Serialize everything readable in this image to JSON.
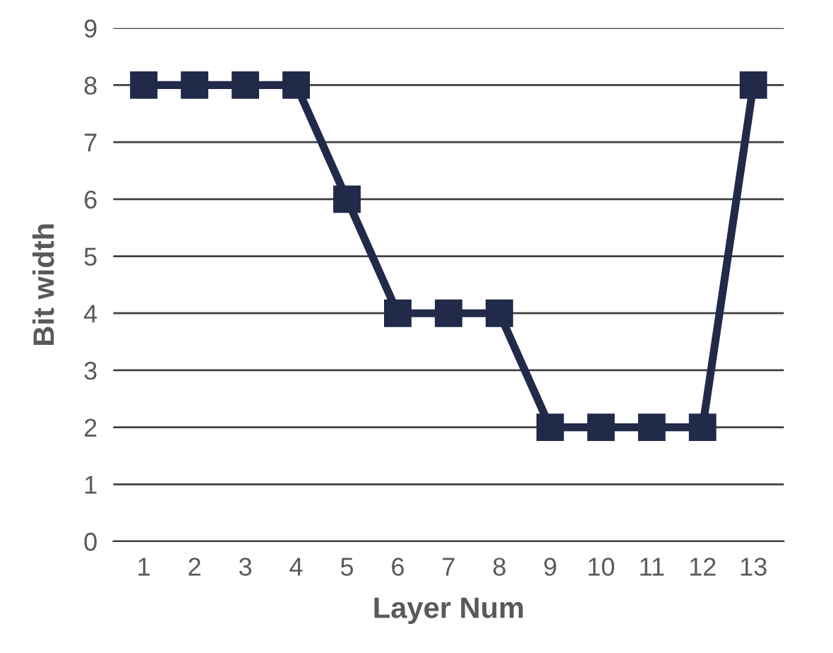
{
  "chart_data": {
    "type": "line",
    "xlabel": "Layer Num",
    "ylabel": "Bit width",
    "categories": [
      "1",
      "2",
      "3",
      "4",
      "5",
      "6",
      "7",
      "8",
      "9",
      "10",
      "11",
      "12",
      "13"
    ],
    "series": [
      {
        "color": "#222a4a",
        "values": [
          8,
          8,
          8,
          8,
          6,
          4,
          4,
          4,
          2,
          2,
          2,
          2,
          8
        ]
      }
    ],
    "ylim": [
      0,
      9
    ],
    "yticks": [
      0,
      1,
      2,
      3,
      4,
      5,
      6,
      7,
      8,
      9
    ],
    "grid": "y",
    "marker": "square",
    "line_style": "solid"
  }
}
